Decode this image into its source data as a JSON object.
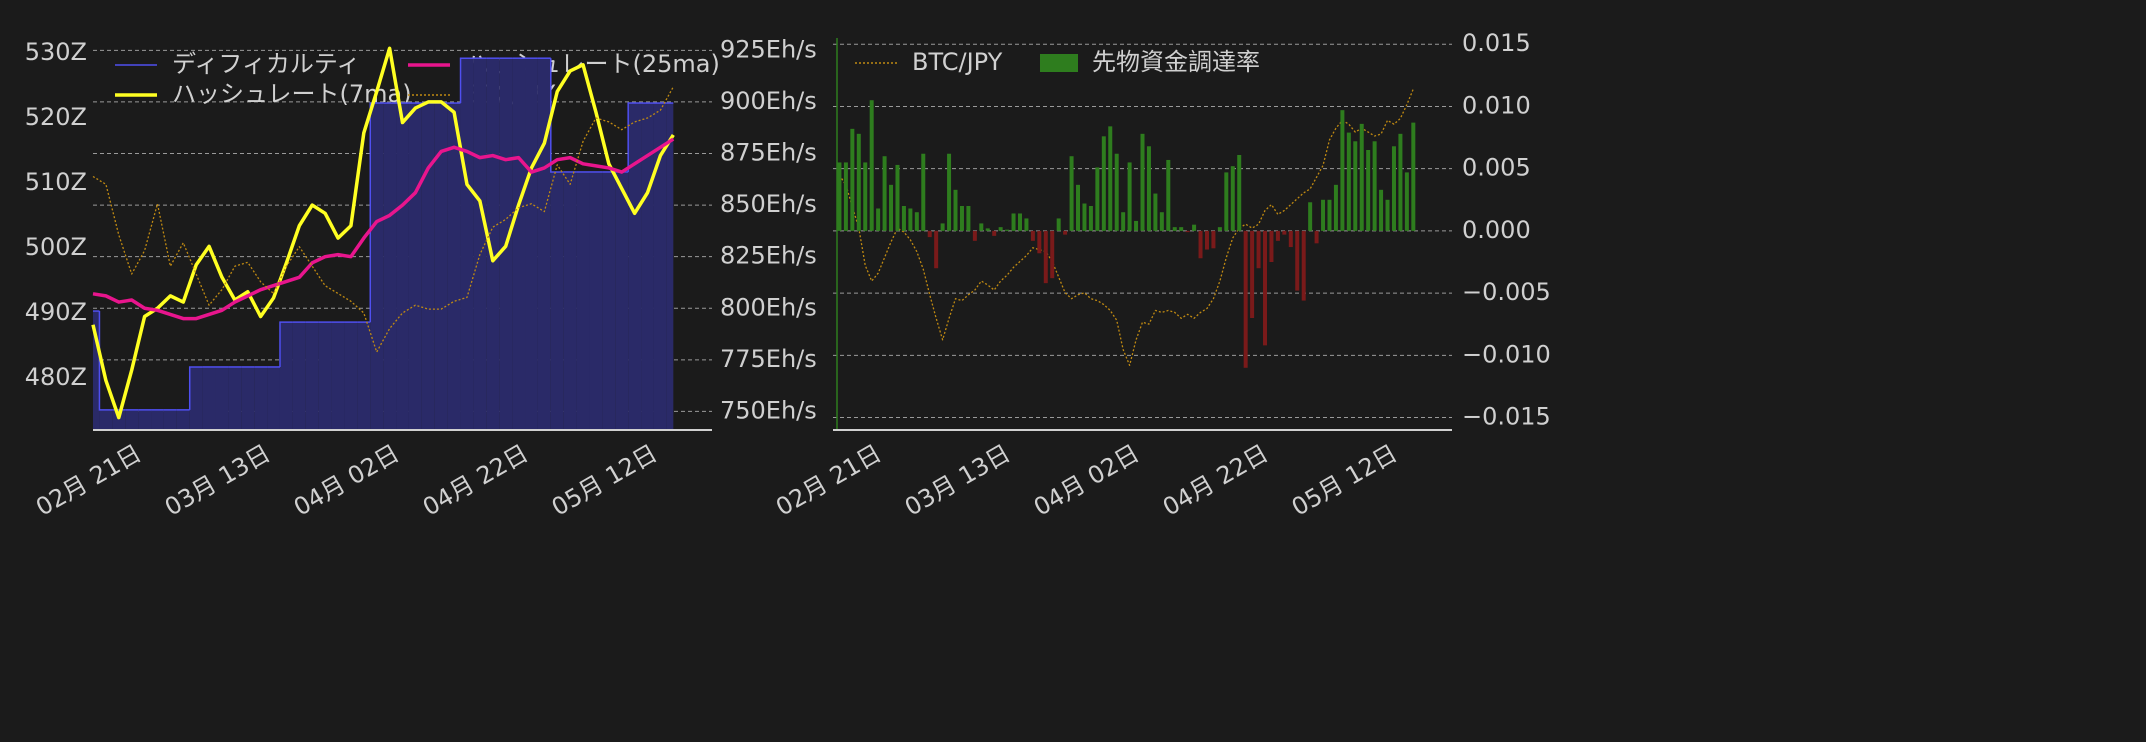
{
  "chart_data": [
    {
      "type": "line",
      "x": [
        -6,
        -4,
        -2,
        0,
        2,
        4,
        6,
        8,
        10,
        12,
        14,
        16,
        18,
        20,
        22,
        24,
        26,
        28,
        30,
        32,
        34,
        36,
        38,
        40,
        42,
        44,
        46,
        48,
        50,
        52,
        54,
        56,
        58,
        60,
        62,
        64,
        66,
        68,
        70,
        72,
        74,
        76,
        78,
        80,
        82,
        84
      ],
      "xlim": [
        -6,
        90
      ],
      "xticks": [
        {
          "value": 0,
          "label": "02月 21日"
        },
        {
          "value": 20,
          "label": "03月 13日"
        },
        {
          "value": 40,
          "label": "04月 02日"
        },
        {
          "value": 60,
          "label": "04月 22日"
        },
        {
          "value": 80,
          "label": "05月 12日"
        }
      ],
      "ylim": [
        472,
        532
      ],
      "yticks": [
        {
          "value": 480,
          "label": "480Z"
        },
        {
          "value": 490,
          "label": "490Z"
        },
        {
          "value": 500,
          "label": "500Z"
        },
        {
          "value": 510,
          "label": "510Z"
        },
        {
          "value": 520,
          "label": "520Z"
        },
        {
          "value": 530,
          "label": "530Z"
        }
      ],
      "y2lim": [
        741,
        930
      ],
      "y2ticks": [
        {
          "value": 750,
          "label": "750Eh/s"
        },
        {
          "value": 775,
          "label": "775Eh/s"
        },
        {
          "value": 800,
          "label": "800Eh/s"
        },
        {
          "value": 825,
          "label": "825Eh/s"
        },
        {
          "value": 850,
          "label": "850Eh/s"
        },
        {
          "value": 875,
          "label": "875Eh/s"
        },
        {
          "value": 900,
          "label": "900Eh/s"
        },
        {
          "value": 925,
          "label": "925Eh/s"
        }
      ],
      "y3lim": [
        0,
        100
      ],
      "grid_axis": "y2",
      "legend_columns": 2,
      "series": [
        {
          "name": "ディフィカルティ",
          "color": "#4f4ff0",
          "fill": "#2a2a68",
          "style": "step_area",
          "axis": "y",
          "values": [
            490.3,
            475.1,
            475.1,
            475.1,
            475.1,
            475.1,
            475.1,
            475.1,
            481.7,
            481.7,
            481.7,
            481.7,
            481.7,
            481.7,
            481.7,
            488.6,
            488.6,
            488.6,
            488.6,
            488.6,
            488.6,
            488.6,
            522.3,
            522.3,
            522.3,
            522.3,
            522.3,
            522.3,
            522.3,
            529.2,
            529.2,
            529.2,
            529.2,
            529.2,
            529.2,
            529.2,
            511.7,
            511.7,
            511.7,
            511.7,
            511.7,
            511.7,
            522.3,
            522.3,
            522.3,
            522.3
          ]
        },
        {
          "name": "ハッシュレート(7ma)",
          "color": "#ffff22",
          "style": "solid",
          "axis": "y2",
          "values": [
            792,
            765,
            747,
            770,
            796,
            800,
            806,
            803,
            821,
            830,
            815,
            804,
            808,
            796,
            805,
            822,
            840,
            850,
            846,
            834,
            840,
            885,
            905,
            926,
            890,
            897,
            900,
            900,
            895,
            860,
            852,
            823,
            830,
            850,
            868,
            880,
            905,
            915,
            918,
            895,
            870,
            858,
            846,
            856,
            874,
            884
          ]
        },
        {
          "name": "ハッシュレート(25ma)",
          "color": "#e8158d",
          "style": "solid",
          "axis": "y2",
          "values": [
            807,
            806,
            803,
            804,
            800,
            799,
            797,
            795,
            795,
            797,
            799,
            803,
            806,
            809,
            811,
            813,
            815,
            822,
            825,
            826,
            825,
            834,
            842,
            845,
            850,
            856,
            868,
            876,
            878,
            876,
            873,
            874,
            872,
            873,
            866,
            868,
            872,
            873,
            870,
            869,
            868,
            866,
            870,
            874,
            878,
            882
          ]
        },
        {
          "name": "BTC/JPY",
          "color": "#c08a12",
          "style": "dotted",
          "axis": "y3",
          "values": [
            65,
            63,
            50,
            40,
            46,
            58,
            42,
            48,
            40,
            32,
            36,
            42,
            43,
            38,
            35,
            42,
            47,
            42,
            37,
            35,
            33,
            30,
            20,
            26,
            30,
            32,
            31,
            31,
            33,
            34,
            45,
            52,
            54,
            57,
            58,
            56,
            68,
            63,
            74,
            80,
            79,
            77,
            79,
            80,
            82,
            88
          ]
        }
      ]
    },
    {
      "type": "bar",
      "x": [
        -5,
        -4,
        -3,
        -2,
        -1,
        0,
        1,
        2,
        3,
        4,
        5,
        6,
        7,
        8,
        9,
        10,
        11,
        12,
        13,
        14,
        15,
        16,
        17,
        18,
        19,
        20,
        21,
        22,
        23,
        24,
        25,
        26,
        27,
        28,
        29,
        30,
        31,
        32,
        33,
        34,
        35,
        36,
        37,
        38,
        39,
        40,
        41,
        42,
        43,
        44,
        45,
        46,
        47,
        48,
        49,
        50,
        51,
        52,
        53,
        54,
        55,
        56,
        57,
        58,
        59,
        60,
        61,
        62,
        63,
        64,
        65,
        66,
        67,
        68,
        69,
        70,
        71,
        72,
        73,
        74,
        75,
        76,
        77,
        78,
        79,
        80,
        81,
        82,
        83,
        84
      ],
      "xlim": [
        -6,
        90
      ],
      "xticks": [
        {
          "value": 0,
          "label": "02月 21日"
        },
        {
          "value": 20,
          "label": "03月 13日"
        },
        {
          "value": 40,
          "label": "04月 02日"
        },
        {
          "value": 60,
          "label": "04月 22日"
        },
        {
          "value": 80,
          "label": "05月 12日"
        }
      ],
      "ylim": [
        -0.016,
        0.0155
      ],
      "yticks": [
        {
          "value": -0.015,
          "label": "−0.015"
        },
        {
          "value": -0.01,
          "label": "−0.010"
        },
        {
          "value": -0.005,
          "label": "−0.005"
        },
        {
          "value": 0,
          "label": "0.000"
        },
        {
          "value": 0.005,
          "label": "0.005"
        },
        {
          "value": 0.01,
          "label": "0.010"
        },
        {
          "value": 0.015,
          "label": "0.015"
        }
      ],
      "y2lim": [
        0,
        100
      ],
      "grid_axis": "y",
      "legend_columns": 2,
      "series": [
        {
          "name": "BTC/JPY",
          "color": "#c08a12",
          "style": "dotted",
          "axis": "y2",
          "values": [
            65,
            62.5,
            57,
            51.5,
            42,
            38,
            40,
            44,
            48,
            51.5,
            50.5,
            48.5,
            45.5,
            41,
            34.5,
            28.5,
            23,
            28.5,
            33.5,
            33,
            34.5,
            35.7,
            38,
            37,
            35.7,
            38,
            39.5,
            41.5,
            43,
            44.5,
            46.5,
            46,
            45.5,
            43,
            39,
            35,
            33.5,
            34.5,
            35,
            33.5,
            33,
            32,
            30.5,
            28,
            20.5,
            16.5,
            23,
            27.5,
            27,
            30.5,
            30,
            30.5,
            30,
            28.5,
            29.5,
            28.5,
            30,
            31,
            33.5,
            38,
            44,
            49,
            51.5,
            52.5,
            51.5,
            52.5,
            56,
            57.5,
            55,
            56,
            57.5,
            59,
            60.5,
            61.5,
            64.5,
            67.5,
            74,
            77,
            79,
            78,
            76,
            77,
            76,
            75,
            75.5,
            79,
            78,
            79.5,
            83,
            87
          ]
        },
        {
          "name": "先物資金調達率",
          "color": "#2e7d1e",
          "negative_color": "#7a1a1a",
          "style": "bar",
          "axis": "y",
          "values": [
            0.0055,
            0.0055,
            0.0082,
            0.0078,
            0.0055,
            0.0105,
            0.0018,
            0.006,
            0.0037,
            0.0053,
            0.002,
            0.0018,
            0.0015,
            0.0062,
            -0.0005,
            -0.003,
            0.0006,
            0.0062,
            0.0033,
            0.002,
            0.002,
            -0.0008,
            0.0006,
            0.0002,
            -0.0004,
            0.0003,
            0.0001,
            0.0014,
            0.0014,
            0.001,
            -0.0008,
            -0.0018,
            -0.0042,
            -0.0038,
            0.001,
            -0.0003,
            0.006,
            0.0037,
            0.0022,
            0.002,
            0.0051,
            0.0076,
            0.0084,
            0.0062,
            0.0015,
            0.0055,
            0.0008,
            0.0078,
            0.0068,
            0.003,
            0.0015,
            0.0057,
            0.0003,
            0.0003,
            -0.0001,
            0.0005,
            -0.0022,
            -0.0015,
            -0.0014,
            0.0003,
            0.0047,
            0.0052,
            0.0061,
            -0.011,
            -0.007,
            -0.003,
            -0.0092,
            -0.0025,
            -0.0008,
            -0.0003,
            -0.0013,
            -0.0048,
            -0.0056,
            0.0023,
            -0.001,
            0.0025,
            0.0025,
            0.0037,
            0.0097,
            0.0079,
            0.0072,
            0.0086,
            0.0065,
            0.0072,
            0.0033,
            0.0025,
            0.0068,
            0.0078,
            0.0047,
            0.0087
          ]
        }
      ]
    }
  ]
}
